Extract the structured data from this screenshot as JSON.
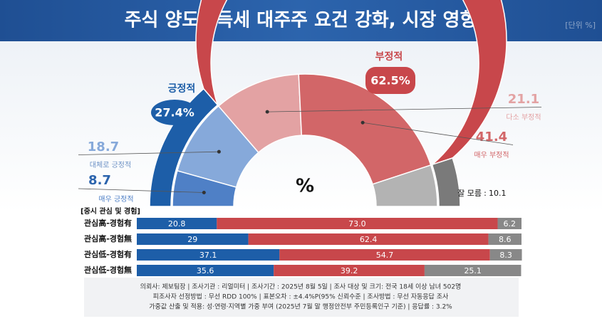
{
  "title": "주식 양도소득세 대주주 요건 강화, 시장 영향",
  "unit": "[단위 %]",
  "chart_data": [
    {
      "type": "semi-donut",
      "center_label": "%",
      "rings": [
        {
          "categories": [
            "긍정적",
            "부정적",
            "잘 모름"
          ],
          "values": [
            27.4,
            62.5,
            10.1
          ],
          "value_labels": [
            "27.4%",
            "62.5%",
            "10.1"
          ],
          "colors": [
            "#1d5ea8",
            "#c8474b",
            "#7a7a7a"
          ]
        },
        {
          "categories": [
            "매우 긍정적",
            "대체로 긍정적",
            "다소 부정적",
            "매우 부정적"
          ],
          "values": [
            8.7,
            18.7,
            21.1,
            41.4
          ],
          "colors": [
            "#4f80c6",
            "#86a9da",
            "#e3a2a3",
            "#d26668"
          ]
        }
      ],
      "rest_color": "#b3b3b3"
    },
    {
      "type": "stacked-bar",
      "title": "[중시 관심 및 경험]",
      "categories": [
        "관심高-경험有",
        "관심高-경험無",
        "관심低-경험有",
        "관심低-경험無"
      ],
      "xlim": [
        0,
        100
      ],
      "series": [
        {
          "color": "#1d5ea8",
          "values": [
            20.8,
            29,
            37.1,
            35.6
          ]
        },
        {
          "color": "#c8474b",
          "values": [
            73.0,
            62.4,
            54.7,
            39.2
          ],
          "value_labels": [
            "73.0",
            "62.4",
            "54.7",
            "39.2"
          ]
        },
        {
          "color": "#888888",
          "values": [
            6.2,
            8.6,
            8.3,
            25.1
          ]
        }
      ]
    }
  ],
  "notes": [
    "의뢰사: 제보팀장 | 조사기관 : 리얼미터  |  조사기간 : 2025년 8월 5일  | 조사 대상 및 크기: 전국 18세 이상 남녀 502명",
    "피조사자 선정방법 : 무선 RDD 100% | 표본오차 : ±4.4%P(95% 신뢰수준 | 조사방법 : 무선 자동응답 조사",
    "가중값 산출 및 적용: 성·연령·지역별 가중 부여 (2025년 7월 말 행정안전부 주민등록인구 기준) | 응답률 : 3.2%"
  ]
}
